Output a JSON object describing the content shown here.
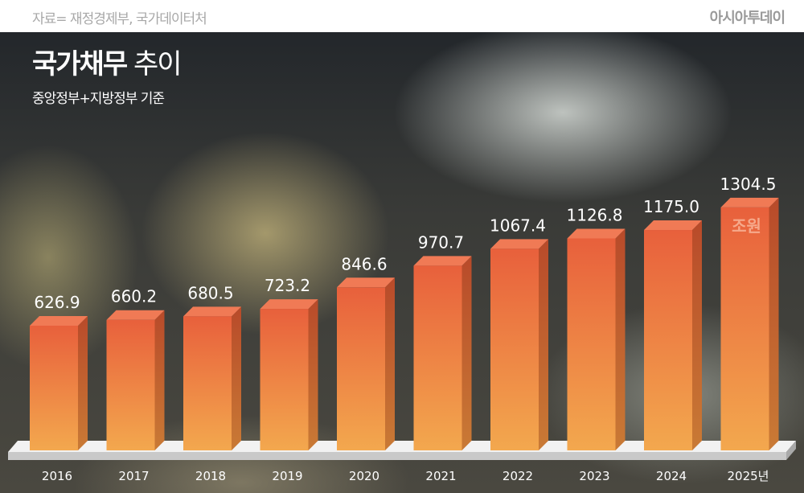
{
  "header": {
    "source": "자료= 재정경제부, 국가데이터처",
    "logo": "아시아투데이",
    "title_bold": "국가채무",
    "title_light": "추이",
    "subtitle": "중앙정부+지방정부 기준"
  },
  "chart_data": {
    "type": "bar",
    "title": "국가채무 추이",
    "subtitle": "중앙정부+지방정부 기준",
    "unit": "조원",
    "categories": [
      "2016",
      "2017",
      "2018",
      "2019",
      "2020",
      "2021",
      "2022",
      "2023",
      "2024",
      "2025년"
    ],
    "values": [
      626.9,
      660.2,
      680.5,
      723.2,
      846.6,
      970.7,
      1067.4,
      1126.8,
      1175.0,
      1304.5
    ],
    "value_labels": [
      "626.9",
      "660.2",
      "680.5",
      "723.2",
      "846.6",
      "970.7",
      "1067.4",
      "1126.8",
      "1175.0",
      "1304.5"
    ],
    "grid": false,
    "colors": {
      "bar_top": "#e8603c",
      "bar_bottom": "#f3a84e",
      "bar_side": "#b84a2a",
      "platform": "#e6e6e6"
    }
  }
}
